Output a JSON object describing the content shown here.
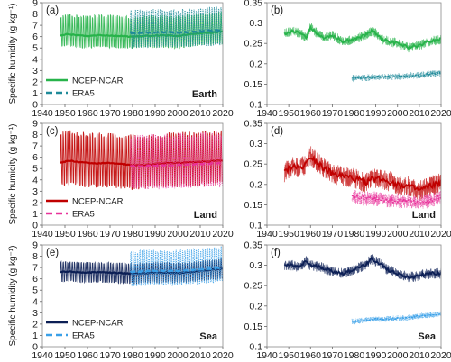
{
  "chart_data": [
    {
      "type": "line",
      "panel_label": "(a)",
      "region_label": "Earth",
      "ylabel": "Specific humidity (g kg⁻¹)",
      "xlim": [
        1940,
        2020
      ],
      "ylim": [
        0,
        9
      ],
      "x_ticks": [
        1940,
        1950,
        1960,
        1970,
        1980,
        1990,
        2000,
        2010,
        2020
      ],
      "y_ticks": [
        0,
        1,
        2,
        3,
        4,
        5,
        6,
        7,
        8,
        9
      ],
      "grid": false,
      "legend_placement": "bottom-left",
      "series": [
        {
          "name": "NCEP-NCAR",
          "color": "#27b34a",
          "style": "seasonal",
          "x_range": [
            1948,
            2020
          ],
          "mean_x": [
            1948,
            1950,
            1955,
            1960,
            1965,
            1970,
            1975,
            1980,
            1985,
            1990,
            1995,
            2000,
            2005,
            2010,
            2015,
            2020
          ],
          "mean_y": [
            6.1,
            6.2,
            6.15,
            6.05,
            6.15,
            6.1,
            6.05,
            6.0,
            6.05,
            6.1,
            6.1,
            6.05,
            6.2,
            6.3,
            6.35,
            6.45
          ],
          "max_y": 8.1,
          "min_y": 4.9
        },
        {
          "name": "ERA5",
          "color": "#1f8a99",
          "style": "seasonal",
          "x_range": [
            1979,
            2020
          ],
          "mean_x": [
            1979,
            1985,
            1990,
            1995,
            2000,
            2005,
            2010,
            2015,
            2020
          ],
          "mean_y": [
            6.3,
            6.35,
            6.4,
            6.4,
            6.35,
            6.4,
            6.5,
            6.55,
            6.6
          ],
          "max_y": 8.6,
          "min_y": 4.8
        }
      ]
    },
    {
      "type": "line",
      "panel_label": "(b)",
      "xlim": [
        1940,
        2020
      ],
      "ylim": [
        0.1,
        0.35
      ],
      "x_ticks": [
        1940,
        1950,
        1960,
        1970,
        1980,
        1990,
        2000,
        2010,
        2020
      ],
      "y_ticks": [
        0.1,
        0.15,
        0.2,
        0.25,
        0.3,
        0.35
      ],
      "grid": false,
      "series": [
        {
          "name": "NCEP-NCAR",
          "color": "#27b34a",
          "style": "annual",
          "x_range": [
            1948,
            2020
          ],
          "mean_x": [
            1948,
            1952,
            1955,
            1958,
            1960,
            1963,
            1966,
            1970,
            1975,
            1980,
            1985,
            1988,
            1990,
            1993,
            1996,
            2000,
            2005,
            2010,
            2015,
            2020
          ],
          "mean_y": [
            0.275,
            0.28,
            0.275,
            0.265,
            0.29,
            0.275,
            0.265,
            0.27,
            0.255,
            0.26,
            0.27,
            0.28,
            0.275,
            0.26,
            0.255,
            0.25,
            0.24,
            0.245,
            0.255,
            0.26
          ],
          "noise": 0.012
        },
        {
          "name": "ERA5",
          "color": "#1f8a99",
          "style": "annual-dotted",
          "x_range": [
            1979,
            2020
          ],
          "mean_x": [
            1979,
            1985,
            1990,
            1995,
            2000,
            2005,
            2010,
            2015,
            2020
          ],
          "mean_y": [
            0.165,
            0.165,
            0.168,
            0.168,
            0.168,
            0.17,
            0.172,
            0.175,
            0.177
          ],
          "noise": 0.008
        }
      ]
    },
    {
      "type": "line",
      "panel_label": "(c)",
      "region_label": "Land",
      "ylabel": "Specific humidity (g kg⁻¹)",
      "xlim": [
        1940,
        2020
      ],
      "ylim": [
        0,
        9
      ],
      "x_ticks": [
        1940,
        1950,
        1960,
        1970,
        1980,
        1990,
        2000,
        2010,
        2020
      ],
      "y_ticks": [
        0,
        1,
        2,
        3,
        4,
        5,
        6,
        7,
        8,
        9
      ],
      "grid": false,
      "legend_placement": "bottom-left",
      "series": [
        {
          "name": "NCEP-NCAR",
          "color": "#c00000",
          "style": "seasonal",
          "x_range": [
            1948,
            2020
          ],
          "mean_x": [
            1948,
            1952,
            1955,
            1960,
            1965,
            1970,
            1975,
            1980,
            1985,
            1990,
            1995,
            2000,
            2005,
            2010,
            2015,
            2020
          ],
          "mean_y": [
            5.5,
            5.7,
            5.6,
            5.5,
            5.45,
            5.5,
            5.4,
            5.3,
            5.3,
            5.4,
            5.5,
            5.5,
            5.55,
            5.6,
            5.65,
            5.7
          ],
          "max_y": 8.5,
          "min_y": 3.1
        },
        {
          "name": "ERA5",
          "color": "#e8329a",
          "style": "seasonal",
          "x_range": [
            1979,
            2020
          ],
          "mean_x": [
            1979,
            1985,
            1990,
            1995,
            2000,
            2005,
            2010,
            2015,
            2020
          ],
          "mean_y": [
            5.2,
            5.2,
            5.25,
            5.3,
            5.3,
            5.35,
            5.4,
            5.45,
            5.5
          ],
          "max_y": 8.3,
          "min_y": 2.9
        }
      ]
    },
    {
      "type": "line",
      "panel_label": "(d)",
      "region_label": "Land",
      "xlim": [
        1940,
        2020
      ],
      "ylim": [
        0.1,
        0.35
      ],
      "x_ticks": [
        1940,
        1950,
        1960,
        1970,
        1980,
        1990,
        2000,
        2010,
        2020
      ],
      "y_ticks": [
        0.1,
        0.15,
        0.2,
        0.25,
        0.3,
        0.35
      ],
      "grid": false,
      "series": [
        {
          "name": "NCEP-NCAR",
          "color": "#c00000",
          "style": "annual",
          "x_range": [
            1948,
            2020
          ],
          "mean_x": [
            1948,
            1952,
            1955,
            1958,
            1960,
            1965,
            1970,
            1975,
            1980,
            1985,
            1990,
            1995,
            2000,
            2005,
            2010,
            2015,
            2020
          ],
          "mean_y": [
            0.23,
            0.245,
            0.24,
            0.25,
            0.27,
            0.245,
            0.225,
            0.22,
            0.215,
            0.205,
            0.215,
            0.21,
            0.2,
            0.195,
            0.185,
            0.195,
            0.205
          ],
          "noise": 0.025
        },
        {
          "name": "ERA5",
          "color": "#e8329a",
          "style": "annual-dotted",
          "x_range": [
            1979,
            2020
          ],
          "mean_x": [
            1979,
            1985,
            1990,
            1995,
            2000,
            2005,
            2010,
            2015,
            2020
          ],
          "mean_y": [
            0.17,
            0.165,
            0.165,
            0.16,
            0.16,
            0.16,
            0.155,
            0.16,
            0.17
          ],
          "noise": 0.018
        }
      ]
    },
    {
      "type": "line",
      "panel_label": "(e)",
      "region_label": "Sea",
      "ylabel": "Specific humidity (g kg⁻¹)",
      "xlim": [
        1940,
        2020
      ],
      "ylim": [
        0,
        9
      ],
      "x_ticks": [
        1940,
        1950,
        1960,
        1970,
        1980,
        1990,
        2000,
        2010,
        2020
      ],
      "y_ticks": [
        0,
        1,
        2,
        3,
        4,
        5,
        6,
        7,
        8,
        9
      ],
      "grid": false,
      "legend_placement": "bottom-left",
      "series": [
        {
          "name": "NCEP-NCAR",
          "color": "#0c1f55",
          "style": "seasonal",
          "x_range": [
            1948,
            2020
          ],
          "mean_x": [
            1948,
            1950,
            1955,
            1960,
            1965,
            1970,
            1975,
            1980,
            1985,
            1990,
            1995,
            2000,
            2005,
            2010,
            2015,
            2020
          ],
          "mean_y": [
            6.6,
            6.65,
            6.6,
            6.55,
            6.6,
            6.55,
            6.5,
            6.45,
            6.5,
            6.55,
            6.55,
            6.5,
            6.6,
            6.7,
            6.8,
            6.9
          ],
          "max_y": 7.6,
          "min_y": 5.6
        },
        {
          "name": "ERA5",
          "color": "#3aa0e8",
          "style": "seasonal",
          "x_range": [
            1979,
            2020
          ],
          "mean_x": [
            1979,
            1985,
            1990,
            1995,
            2000,
            2005,
            2010,
            2015,
            2020
          ],
          "mean_y": [
            6.6,
            6.65,
            6.7,
            6.7,
            6.7,
            6.75,
            6.8,
            6.9,
            7.0
          ],
          "max_y": 8.7,
          "min_y": 5.2
        }
      ]
    },
    {
      "type": "line",
      "panel_label": "(f)",
      "region_label": "Sea",
      "xlim": [
        1940,
        2020
      ],
      "ylim": [
        0.1,
        0.35
      ],
      "x_ticks": [
        1940,
        1950,
        1960,
        1970,
        1980,
        1990,
        2000,
        2010,
        2020
      ],
      "y_ticks": [
        0.1,
        0.15,
        0.2,
        0.25,
        0.3,
        0.35
      ],
      "grid": false,
      "series": [
        {
          "name": "NCEP-NCAR",
          "color": "#0c1f55",
          "style": "annual",
          "x_range": [
            1948,
            2020
          ],
          "mean_x": [
            1948,
            1952,
            1955,
            1958,
            1960,
            1965,
            1970,
            1975,
            1980,
            1985,
            1988,
            1990,
            1993,
            1995,
            2000,
            2005,
            2010,
            2015,
            2020
          ],
          "mean_y": [
            0.3,
            0.3,
            0.295,
            0.31,
            0.3,
            0.295,
            0.285,
            0.28,
            0.29,
            0.3,
            0.315,
            0.31,
            0.3,
            0.29,
            0.28,
            0.27,
            0.275,
            0.28,
            0.28
          ],
          "noise": 0.013
        },
        {
          "name": "ERA5",
          "color": "#3aa0e8",
          "style": "annual-dotted",
          "x_range": [
            1979,
            2020
          ],
          "mean_x": [
            1979,
            1985,
            1990,
            1995,
            2000,
            2005,
            2010,
            2015,
            2020
          ],
          "mean_y": [
            0.162,
            0.165,
            0.168,
            0.168,
            0.17,
            0.172,
            0.175,
            0.178,
            0.18
          ],
          "noise": 0.007
        }
      ]
    }
  ]
}
